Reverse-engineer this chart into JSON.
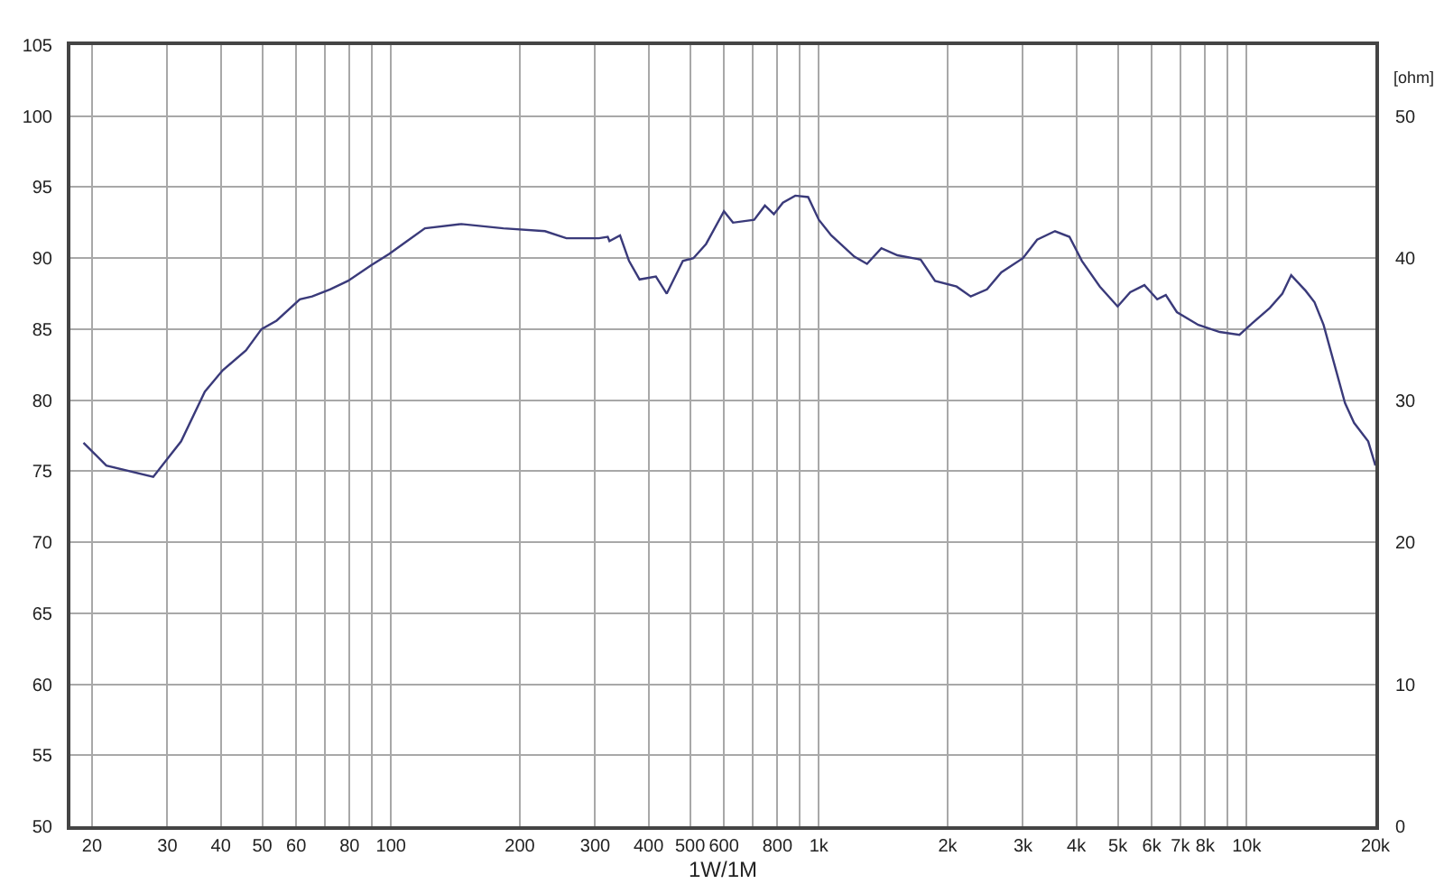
{
  "chart_data": {
    "type": "line",
    "xlabel": "1W/1M",
    "y2label": "[ohm]",
    "log": "x",
    "grid": true,
    "xlim": [
      17.8,
      20000
    ],
    "xticks": [
      20,
      30,
      40,
      50,
      60,
      {
        "value": 70,
        "label": null
      },
      80,
      {
        "value": 90,
        "label": null
      },
      100,
      200,
      300,
      400,
      500,
      600,
      {
        "value": 700,
        "label": null
      },
      800,
      {
        "value": 900,
        "label": null
      },
      {
        "value": 1000,
        "label": "1k"
      },
      {
        "value": 2000,
        "label": "2k"
      },
      {
        "value": 3000,
        "label": "3k"
      },
      {
        "value": 4000,
        "label": "4k"
      },
      {
        "value": 5000,
        "label": "5k"
      },
      {
        "value": 6000,
        "label": "6k"
      },
      {
        "value": 7000,
        "label": "7k"
      },
      {
        "value": 8000,
        "label": "8k"
      },
      {
        "value": 9000,
        "label": null
      },
      {
        "value": 10000,
        "label": "10k"
      },
      {
        "value": 20000,
        "label": "20k"
      }
    ],
    "ylim": [
      50,
      105
    ],
    "yticks": [
      50,
      55,
      60,
      65,
      70,
      75,
      80,
      85,
      90,
      95,
      100,
      105
    ],
    "y2lim": [
      0,
      55
    ],
    "y2ticks": [
      0,
      10,
      20,
      30,
      40,
      50
    ],
    "series": [
      {
        "color": "#3a3a7a",
        "x": [
          19.1,
          21.6,
          27.8,
          32.3,
          36.7,
          40.4,
          45.8,
          49.8,
          54.0,
          61.2,
          65.4,
          72.0,
          79.3,
          89.9,
          99.0,
          109,
          120,
          146,
          183,
          229,
          257,
          306,
          321,
          324,
          343,
          360,
          381,
          416,
          441,
          481,
          509,
          545,
          600,
          630,
          706,
          748,
          785,
          824,
          881,
          944,
          1000,
          1069,
          1211,
          1296,
          1400,
          1527,
          1730,
          1869,
          2099,
          2265,
          2472,
          2670,
          3000,
          3238,
          3565,
          3853,
          4121,
          4538,
          4994,
          5344,
          5770,
          6180,
          6472,
          6869,
          7710,
          8652,
          9620,
          10290,
          11330,
          12120,
          12710,
          13740,
          14410,
          15130,
          16980,
          17830,
          19240,
          20000
        ],
        "values": [
          77.0,
          75.4,
          74.6,
          77.1,
          80.6,
          82.1,
          83.5,
          85.0,
          85.6,
          87.1,
          87.3,
          87.8,
          88.4,
          89.5,
          90.3,
          91.2,
          92.1,
          92.4,
          92.1,
          91.9,
          91.4,
          91.4,
          91.5,
          91.2,
          91.6,
          89.8,
          88.5,
          88.7,
          87.5,
          89.8,
          90.0,
          91.0,
          93.3,
          92.5,
          92.7,
          93.7,
          93.1,
          93.9,
          94.4,
          94.3,
          92.7,
          91.6,
          90.1,
          89.6,
          90.7,
          90.2,
          89.9,
          88.4,
          88.0,
          87.3,
          87.8,
          89.0,
          90.0,
          91.3,
          91.9,
          91.5,
          89.8,
          88.0,
          86.6,
          87.6,
          88.1,
          87.1,
          87.4,
          86.2,
          85.3,
          84.8,
          84.6,
          85.4,
          86.5,
          87.5,
          88.8,
          87.7,
          86.9,
          85.3,
          79.8,
          78.4,
          77.1,
          75.4
        ]
      }
    ]
  }
}
